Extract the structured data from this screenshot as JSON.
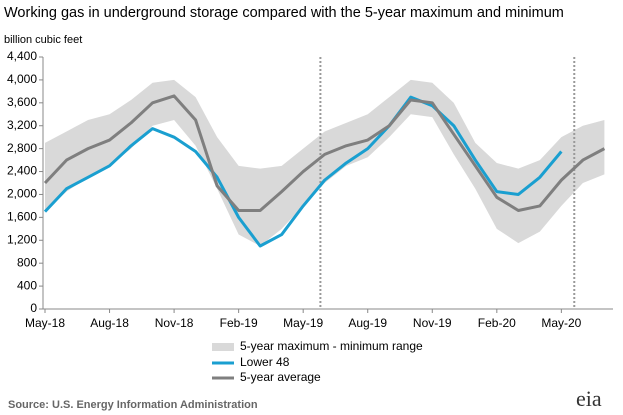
{
  "chart_data": {
    "type": "line",
    "title": "Working gas in underground  storage compared with the 5-year maximum and minimum",
    "y_label": "billion cubic feet",
    "source": "Source:  U.S. Energy Information Administration",
    "logo": "eia",
    "x": [
      0,
      1,
      2,
      3,
      4,
      5,
      6,
      7,
      8,
      9,
      10,
      11,
      12,
      13,
      14,
      15,
      16,
      17,
      18,
      19,
      20,
      21,
      22,
      23,
      24,
      25,
      26
    ],
    "xlim": [
      0,
      26.4
    ],
    "xticks": [
      {
        "value": 0,
        "label": "May-18"
      },
      {
        "value": 3,
        "label": "Aug-18"
      },
      {
        "value": 6,
        "label": "Nov-18"
      },
      {
        "value": 9,
        "label": "Feb-19"
      },
      {
        "value": 12,
        "label": "May-19"
      },
      {
        "value": 15,
        "label": "Aug-19"
      },
      {
        "value": 18,
        "label": "Nov-19"
      },
      {
        "value": 21,
        "label": "Feb-20"
      },
      {
        "value": 24,
        "label": "May-20"
      }
    ],
    "ylim": [
      0,
      4400
    ],
    "yticks": [
      0,
      {
        "value": 400,
        "label": "400"
      },
      {
        "value": 800,
        "label": "800"
      },
      {
        "value": 1200,
        "label": "1,200"
      },
      {
        "value": 1600,
        "label": "1,600"
      },
      {
        "value": 2000,
        "label": "2,000"
      },
      {
        "value": 2400,
        "label": "2,400"
      },
      {
        "value": 2800,
        "label": "2,800"
      },
      {
        "value": 3200,
        "label": "3,200"
      },
      {
        "value": 3600,
        "label": "3,600"
      },
      {
        "value": 4000,
        "label": "4,000"
      },
      {
        "value": 4400,
        "label": "4,400"
      }
    ],
    "vlines": [
      12.8,
      24.6
    ],
    "band": {
      "name": "5-year maximum - minimum range",
      "color": "#d9d9d9",
      "upper": [
        2900,
        3100,
        3300,
        3400,
        3650,
        3950,
        4000,
        3700,
        3000,
        2500,
        2450,
        2500,
        2800,
        3100,
        3250,
        3400,
        3700,
        4000,
        3950,
        3600,
        2900,
        2550,
        2450,
        2600,
        3000,
        3200,
        3300
      ],
      "lower": [
        1700,
        2050,
        2300,
        2500,
        2800,
        3200,
        3300,
        2850,
        2100,
        1300,
        1100,
        1400,
        1800,
        2200,
        2500,
        2650,
        3000,
        3400,
        3350,
        2700,
        2100,
        1400,
        1150,
        1350,
        1800,
        2200,
        2350
      ]
    },
    "series": [
      {
        "name": "Lower 48",
        "color": "#1a9fd0",
        "values": [
          1700,
          2100,
          2300,
          2500,
          2850,
          3150,
          3000,
          2750,
          2300,
          1600,
          1100,
          1300,
          1800,
          2250,
          2550,
          2800,
          3200,
          3700,
          3550,
          3200,
          2600,
          2050,
          2000,
          2300,
          2750,
          null,
          null
        ]
      },
      {
        "name": "5-year average",
        "color": "#7f7f7f",
        "values": [
          2200,
          2600,
          2800,
          2950,
          3250,
          3600,
          3720,
          3300,
          2150,
          1720,
          1720,
          2050,
          2400,
          2700,
          2850,
          2950,
          3200,
          3650,
          3600,
          3050,
          2500,
          1950,
          1720,
          1800,
          2250,
          2600,
          2800
        ]
      }
    ]
  }
}
